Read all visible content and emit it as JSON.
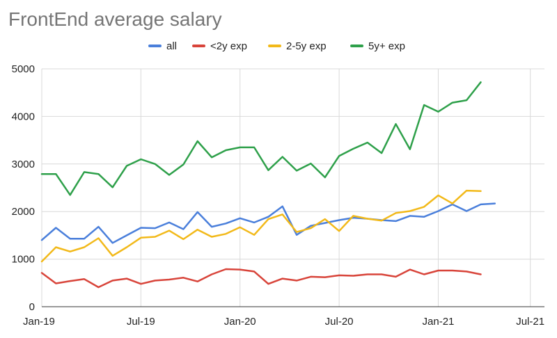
{
  "chart_data": {
    "type": "line",
    "title": "FrontEnd average salary",
    "xlabel": "",
    "ylabel": "",
    "ylim": [
      0,
      5000
    ],
    "yticks": [
      0,
      1000,
      2000,
      3000,
      4000,
      5000
    ],
    "xtick_labels": [
      {
        "label": "Jan-19",
        "index": 0
      },
      {
        "label": "Jul-19",
        "index": 7
      },
      {
        "label": "Jan-20",
        "index": 14
      },
      {
        "label": "Jul-20",
        "index": 21
      },
      {
        "label": "Jan-21",
        "index": 28
      },
      {
        "label": "Jul-21",
        "index": 34.5
      }
    ],
    "x_index_range": [
      0,
      35.5
    ],
    "grid": true,
    "legend": "top-center",
    "series": [
      {
        "name": "all",
        "color": "#4a7fdb",
        "values": [
          1400,
          1660,
          1430,
          1430,
          1680,
          1340,
          1500,
          1660,
          1650,
          1770,
          1630,
          1990,
          1680,
          1750,
          1860,
          1770,
          1890,
          2110,
          1510,
          1700,
          1760,
          1820,
          1870,
          1850,
          1820,
          1800,
          1910,
          1890,
          2010,
          2150,
          2010,
          2150,
          2170
        ]
      },
      {
        "name": "<2y exp",
        "color": "#d8443a",
        "values": [
          710,
          490,
          540,
          580,
          410,
          550,
          590,
          480,
          550,
          570,
          610,
          530,
          680,
          790,
          780,
          740,
          480,
          590,
          550,
          630,
          620,
          660,
          650,
          680,
          680,
          630,
          780,
          680,
          760,
          760,
          740,
          680
        ]
      },
      {
        "name": "2-5y exp",
        "color": "#f2b919",
        "values": [
          950,
          1250,
          1160,
          1250,
          1440,
          1070,
          1250,
          1450,
          1470,
          1600,
          1420,
          1620,
          1470,
          1530,
          1670,
          1510,
          1840,
          1940,
          1570,
          1650,
          1840,
          1590,
          1910,
          1850,
          1810,
          1970,
          2010,
          2100,
          2340,
          2170,
          2440,
          2430
        ]
      },
      {
        "name": "5y+ exp",
        "color": "#2ea04a",
        "values": [
          2790,
          2790,
          2350,
          2830,
          2790,
          2510,
          2960,
          3100,
          3000,
          2770,
          2990,
          3480,
          3140,
          3290,
          3350,
          3350,
          2870,
          3150,
          2860,
          3010,
          2720,
          3170,
          3320,
          3450,
          3230,
          3840,
          3310,
          4240,
          4100,
          4290,
          4340,
          4720
        ]
      }
    ]
  }
}
